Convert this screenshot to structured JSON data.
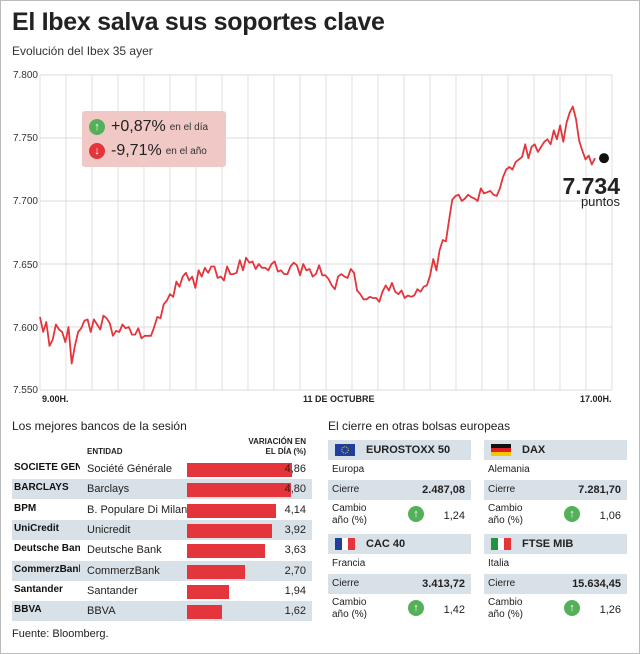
{
  "header": {
    "title": "El Ibex salva sus soportes clave",
    "subtitle": "Evolución del Ibex 35 ayer"
  },
  "kpis": {
    "day": {
      "value": "+0,87%",
      "label": "en el día",
      "direction": "up"
    },
    "year": {
      "value": "-9,71%",
      "label": "en el año",
      "direction": "down"
    }
  },
  "last": {
    "value": "7.734",
    "unit": "puntos"
  },
  "colors": {
    "line": "#e3353b",
    "bar": "#e3353b",
    "up": "#55b05a",
    "row_alt": "#d9e1e8",
    "kpi_box": "#f0c8c6"
  },
  "chart_data": [
    {
      "type": "line",
      "x_ticks": [
        "9.00H.",
        "11 DE OCTUBRE",
        "17.00H."
      ],
      "y_ticks": [
        "7.800",
        "7.750",
        "7.700",
        "7.650",
        "7.600",
        "7.550"
      ],
      "ylim": [
        7550,
        7800
      ],
      "grid": true,
      "series": [
        {
          "values": [
            7608,
            7596,
            7604,
            7585,
            7590,
            7602,
            7598,
            7596,
            7588,
            7600,
            7571,
            7585,
            7596,
            7599,
            7605,
            7606,
            7596,
            7606,
            7602,
            7598,
            7609,
            7607,
            7603,
            7593,
            7597,
            7596,
            7602,
            7599,
            7600,
            7594,
            7594,
            7599,
            7591,
            7593,
            7593,
            7593,
            7600,
            7608,
            7607,
            7618,
            7621,
            7626,
            7624,
            7636,
            7632,
            7640,
            7643,
            7637,
            7640,
            7631,
            7645,
            7640,
            7647,
            7643,
            7648,
            7648,
            7639,
            7640,
            7637,
            7648,
            7642,
            7642,
            7643,
            7653,
            7645,
            7655,
            7651,
            7652,
            7646,
            7650,
            7647,
            7647,
            7645,
            7650,
            7652,
            7644,
            7645,
            7642,
            7642,
            7648,
            7651,
            7649,
            7641,
            7650,
            7645,
            7646,
            7640,
            7642,
            7649,
            7641,
            7641,
            7638,
            7633,
            7630,
            7640,
            7642,
            7640,
            7639,
            7646,
            7643,
            7629,
            7626,
            7622,
            7622,
            7624,
            7623,
            7623,
            7620,
            7628,
            7633,
            7629,
            7635,
            7628,
            7626,
            7629,
            7623,
            7625,
            7624,
            7625,
            7630,
            7628,
            7632,
            7633,
            7641,
            7654,
            7645,
            7661,
            7669,
            7668,
            7685,
            7701,
            7704,
            7705,
            7700,
            7702,
            7705,
            7703,
            7702,
            7700,
            7710,
            7706,
            7707,
            7708,
            7705,
            7704,
            7710,
            7719,
            7725,
            7727,
            7725,
            7731,
            7733,
            7735,
            7745,
            7734,
            7743,
            7745,
            7739,
            7743,
            7747,
            7749,
            7745,
            7756,
            7749,
            7760,
            7747,
            7762,
            7770,
            7775,
            7765,
            7748,
            7740,
            7733,
            7736,
            7729,
            7734
          ]
        }
      ]
    },
    {
      "type": "bar",
      "title": "Los mejores bancos de la sesión",
      "categories": [
        "Société Générale",
        "Barclays",
        "B. Populare Di Milano",
        "Unicredit",
        "Deutsche Bank",
        "CommerzBank",
        "Santander",
        "BBVA"
      ],
      "values": [
        4.86,
        4.8,
        4.14,
        3.92,
        3.63,
        2.7,
        1.94,
        1.62
      ],
      "labels": [
        "4,86",
        "4,80",
        "4,14",
        "3,92",
        "3,63",
        "2,70",
        "1,94",
        "1,62"
      ],
      "logos": [
        "SOCIETE GENERALE",
        "BARCLAYS",
        "BPM",
        "UniCredit",
        "Deutsche Bank",
        "CommerzBank",
        "Santander",
        "BBVA"
      ],
      "col_entity": "ENTIDAD",
      "col_variation": "VARIACIÓN EN EL DÍA (%)",
      "xlim": [
        0,
        5
      ]
    }
  ],
  "indices_title": "El cierre en otras bolsas europeas",
  "indices": [
    {
      "name": "EUROSTOXX 50",
      "country": "Europa",
      "close_label": "Cierre",
      "close": "2.487,08",
      "change_label": "Cambio año (%)",
      "change": "1,24",
      "flag": "eu"
    },
    {
      "name": "DAX",
      "country": "Alemania",
      "close_label": "Cierre",
      "close": "7.281,70",
      "change_label": "Cambio año (%)",
      "change": "1,06",
      "flag": "de"
    },
    {
      "name": "CAC 40",
      "country": "Francia",
      "close_label": "Cierre",
      "close": "3.413,72",
      "change_label": "Cambio año (%)",
      "change": "1,42",
      "flag": "fr"
    },
    {
      "name": "FTSE MIB",
      "country": "Italia",
      "close_label": "Cierre",
      "close": "15.634,45",
      "change_label": "Cambio año (%)",
      "change": "1,26",
      "flag": "it"
    }
  ],
  "source": "Fuente: Bloomberg."
}
